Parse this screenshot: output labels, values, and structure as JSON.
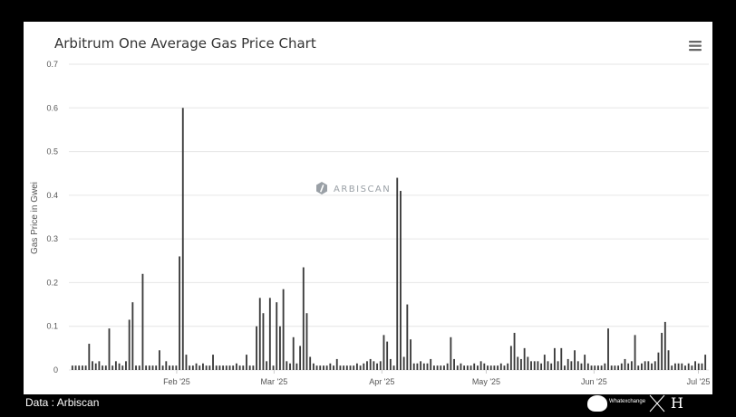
{
  "chart_data": {
    "type": "bar",
    "title": "Arbitrum One Average Gas Price Chart",
    "xlabel": "",
    "ylabel": "Gas Price in Gwei",
    "ylim": [
      0,
      0.7
    ],
    "yticks": [
      "0",
      "0.1",
      "0.2",
      "0.3",
      "0.4",
      "0.5",
      "0.6",
      "0.7"
    ],
    "x_range": [
      "2025-01-01",
      "2025-07-04"
    ],
    "xticks": [
      {
        "label": "Feb '25",
        "date": "2025-02-01"
      },
      {
        "label": "Mar '25",
        "date": "2025-03-01"
      },
      {
        "label": "Apr '25",
        "date": "2025-04-01"
      },
      {
        "label": "May '25",
        "date": "2025-05-01"
      },
      {
        "label": "Jun '25",
        "date": "2025-06-01"
      },
      {
        "label": "Jul '25",
        "date": "2025-07-01"
      }
    ],
    "grid": true,
    "series": [
      {
        "values": [
          0.01,
          0.01,
          0.01,
          0.01,
          0.01,
          0.06,
          0.02,
          0.015,
          0.02,
          0.01,
          0.01,
          0.095,
          0.01,
          0.02,
          0.015,
          0.01,
          0.02,
          0.115,
          0.155,
          0.01,
          0.01,
          0.22,
          0.01,
          0.01,
          0.01,
          0.01,
          0.045,
          0.01,
          0.02,
          0.01,
          0.01,
          0.01,
          0.26,
          0.6,
          0.035,
          0.01,
          0.01,
          0.015,
          0.01,
          0.015,
          0.01,
          0.01,
          0.035,
          0.01,
          0.01,
          0.01,
          0.01,
          0.01,
          0.01,
          0.015,
          0.01,
          0.01,
          0.035,
          0.01,
          0.01,
          0.1,
          0.165,
          0.13,
          0.02,
          0.165,
          0.01,
          0.155,
          0.1,
          0.185,
          0.02,
          0.015,
          0.075,
          0.015,
          0.055,
          0.235,
          0.13,
          0.03,
          0.015,
          0.01,
          0.01,
          0.01,
          0.01,
          0.015,
          0.01,
          0.025,
          0.01,
          0.01,
          0.01,
          0.01,
          0.01,
          0.015,
          0.01,
          0.015,
          0.02,
          0.025,
          0.02,
          0.015,
          0.02,
          0.08,
          0.065,
          0.025,
          0.01,
          0.44,
          0.41,
          0.03,
          0.15,
          0.07,
          0.015,
          0.015,
          0.02,
          0.015,
          0.015,
          0.025,
          0.01,
          0.01,
          0.01,
          0.01,
          0.015,
          0.075,
          0.025,
          0.01,
          0.015,
          0.01,
          0.01,
          0.01,
          0.015,
          0.01,
          0.02,
          0.015,
          0.01,
          0.01,
          0.01,
          0.01,
          0.015,
          0.01,
          0.015,
          0.055,
          0.085,
          0.03,
          0.025,
          0.05,
          0.03,
          0.02,
          0.02,
          0.02,
          0.015,
          0.035,
          0.02,
          0.015,
          0.05,
          0.02,
          0.05,
          0.01,
          0.025,
          0.02,
          0.045,
          0.02,
          0.015,
          0.035,
          0.015,
          0.01,
          0.01,
          0.01,
          0.01,
          0.015,
          0.095,
          0.01,
          0.01,
          0.01,
          0.015,
          0.025,
          0.015,
          0.02,
          0.08,
          0.01,
          0.015,
          0.02,
          0.02,
          0.015,
          0.02,
          0.04,
          0.085,
          0.11,
          0.045,
          0.01,
          0.015,
          0.015,
          0.015,
          0.01,
          0.015,
          0.01,
          0.02,
          0.015,
          0.015,
          0.035
        ]
      }
    ]
  },
  "watermark": "ARBISCAN",
  "menu_icon": "hamburger-menu-icon",
  "footer": {
    "source": "Data : Arbiscan",
    "brand1": "Whatexchange"
  },
  "colors": {
    "bar": "#3a3a3a",
    "background": "#000000",
    "card": "#ffffff"
  }
}
